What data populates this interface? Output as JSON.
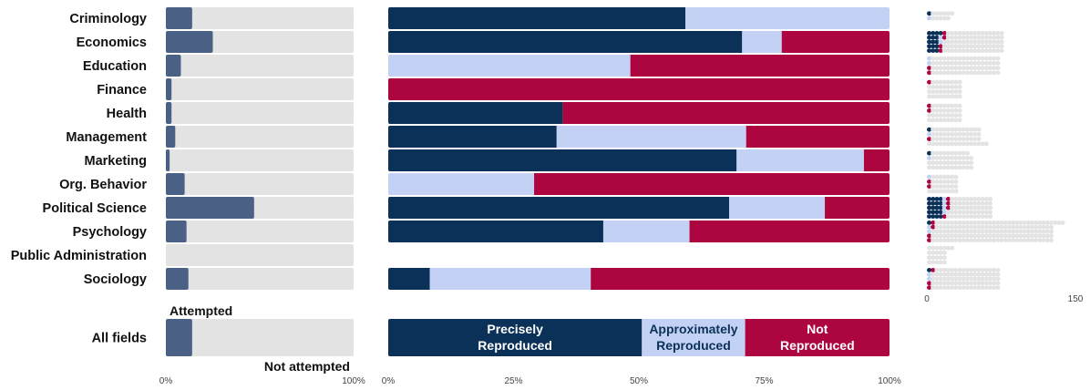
{
  "colors": {
    "attempted": "#4a6085",
    "not_attempted_bg": "#e3e3e3",
    "precisely": "#0b3158",
    "approximately": "#c3d2f4",
    "not_reproduced": "#ad0540",
    "waffle_empty": "#e3e3e3"
  },
  "chart_data": [
    {
      "type": "bar",
      "name": "attempted-share",
      "orientation": "horizontal",
      "categories": [
        "Criminology",
        "Economics",
        "Education",
        "Finance",
        "Health",
        "Management",
        "Marketing",
        "Org. Behavior",
        "Political Science",
        "Psychology",
        "Public Administration",
        "Sociology"
      ],
      "values": [
        14,
        25,
        8,
        3,
        3,
        5,
        2,
        10,
        47,
        11,
        0,
        12
      ],
      "total": {
        "category": "All fields",
        "value": 14
      },
      "xlim": [
        0,
        100
      ],
      "x_ticks": [
        "0%",
        "100%"
      ],
      "annotations": {
        "attempted": "Attempted",
        "not_attempted": "Not attempted"
      }
    },
    {
      "type": "bar",
      "name": "reproduction-outcomes",
      "orientation": "horizontal",
      "stacked": true,
      "categories": [
        "Criminology",
        "Economics",
        "Education",
        "Finance",
        "Health",
        "Management",
        "Marketing",
        "Org. Behavior",
        "Political Science",
        "Psychology",
        "Public Administration",
        "Sociology"
      ],
      "series": [
        {
          "name": "Precisely Reproduced",
          "values": [
            59.3,
            70.6,
            0,
            0,
            34.8,
            33.6,
            69.5,
            0,
            68,
            42.9,
            0,
            8.3
          ]
        },
        {
          "name": "Approximately Reproduced",
          "values": [
            40.7,
            7.9,
            48.3,
            0,
            0,
            37.8,
            25.4,
            29.1,
            19.1,
            17.2,
            0,
            32.1
          ]
        },
        {
          "name": "Not Reproduced",
          "values": [
            0,
            21.5,
            51.7,
            100,
            65.2,
            28.6,
            5.1,
            70.9,
            12.9,
            39.9,
            0,
            59.6
          ]
        }
      ],
      "total": {
        "category": "All fields",
        "values": [
          50.6,
          20.6,
          28.8
        ]
      },
      "segment_labels": [
        [
          "Precisely",
          "Reproduced"
        ],
        [
          "Approximately",
          "Reproduced"
        ],
        [
          "Not",
          "Reproduced"
        ]
      ],
      "xlim": [
        0,
        100
      ],
      "x_ticks": [
        "0%",
        "25%",
        "50%",
        "75%",
        "100%"
      ]
    },
    {
      "type": "waffle",
      "name": "study-counts",
      "categories": [
        "Criminology",
        "Economics",
        "Education",
        "Finance",
        "Health",
        "Management",
        "Marketing",
        "Org. Behavior",
        "Political Science",
        "Psychology",
        "Public Administration",
        "Sociology"
      ],
      "dots_per_row": [
        [
          7,
          6,
          0
        ],
        [
          20,
          20,
          20,
          20,
          20
        ],
        [
          19,
          19,
          19,
          19
        ],
        [
          9,
          9,
          9,
          9
        ],
        [
          9,
          9,
          9,
          9
        ],
        [
          14,
          14,
          14,
          16
        ],
        [
          11,
          12,
          12,
          12
        ],
        [
          8,
          8,
          8,
          8
        ],
        [
          17,
          17,
          17,
          17,
          17
        ],
        [
          36,
          33,
          33,
          33,
          33
        ],
        [
          7,
          5,
          5,
          5
        ],
        [
          19,
          19,
          19,
          19,
          19
        ]
      ],
      "precisely": [
        1,
        16,
        0,
        0,
        0,
        1,
        1,
        0,
        20,
        1,
        0,
        1
      ],
      "approximately": [
        1,
        2,
        2,
        0,
        0,
        1,
        1,
        1,
        4,
        2,
        0,
        2
      ],
      "not_reproduced": [
        0,
        4,
        2,
        1,
        2,
        1,
        0,
        2,
        4,
        4,
        0,
        3
      ],
      "xlim": [
        0,
        150
      ],
      "x_ticks": [
        "0",
        "150"
      ]
    }
  ]
}
